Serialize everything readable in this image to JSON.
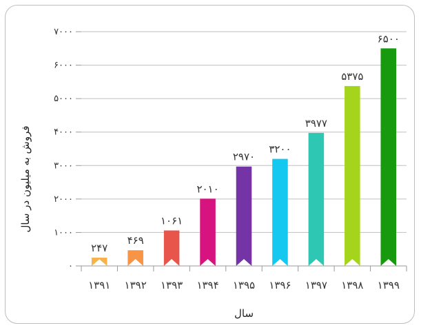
{
  "chart_data": {
    "type": "bar",
    "xlabel": "سال",
    "ylabel": "فروش به میلیون در سال",
    "ylim": [
      0,
      7000
    ],
    "yticks": [
      0,
      1000,
      2000,
      3000,
      4000,
      5000,
      6000,
      7000
    ],
    "ytick_labels": [
      "۰",
      "۱۰۰۰",
      "۲۰۰۰",
      "۳۰۰۰",
      "۴۰۰۰",
      "۵۰۰۰",
      "۶۰۰۰",
      "۷۰۰۰"
    ],
    "categories": [
      "۱۳۹۱",
      "۱۳۹۲",
      "۱۳۹۳",
      "۱۳۹۴",
      "۱۳۹۵",
      "۱۳۹۶",
      "۱۳۹۷",
      "۱۳۹۸",
      "۱۳۹۹"
    ],
    "values": [
      247,
      469,
      1061,
      2010,
      2970,
      3200,
      3977,
      5375,
      6500
    ],
    "data_labels": [
      "۲۴۷",
      "۴۶۹",
      "۱۰۶۱",
      "۲۰۱۰",
      "۲۹۷۰",
      "۳۲۰۰",
      "۳۹۷۷",
      "۵۳۷۵",
      "۶۵۰۰"
    ],
    "colors": [
      "#f7b24a",
      "#f79446",
      "#e8564b",
      "#d6137f",
      "#7434a5",
      "#14c8ef",
      "#2ec7b4",
      "#a5d41c",
      "#179a0e"
    ],
    "grid": true
  }
}
